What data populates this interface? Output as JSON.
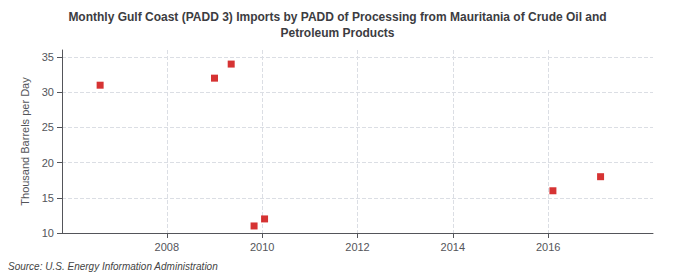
{
  "chart_data": {
    "type": "scatter",
    "title": "Monthly Gulf Coast (PADD 3) Imports by PADD of Processing from Mauritania of Crude Oil and\nPetroleum Products",
    "ylabel": "Thousand Barrels per Day",
    "annotation": "Source: U.S. Energy Information Administration",
    "x": [
      2006.6,
      2009.0,
      2009.35,
      2009.83,
      2010.05,
      2016.1,
      2017.1
    ],
    "values": [
      31.0,
      32.0,
      34.0,
      11.0,
      12.0,
      16.0,
      18.0
    ],
    "color": "#cc0000",
    "marker": "square",
    "xlim": [
      2005.8,
      2018.2
    ],
    "xticks": [
      2008,
      2010,
      2012,
      2014,
      2016
    ],
    "ylim": [
      10,
      36
    ],
    "yticks": [
      10,
      15,
      20,
      25,
      30,
      35
    ],
    "grid": true
  }
}
